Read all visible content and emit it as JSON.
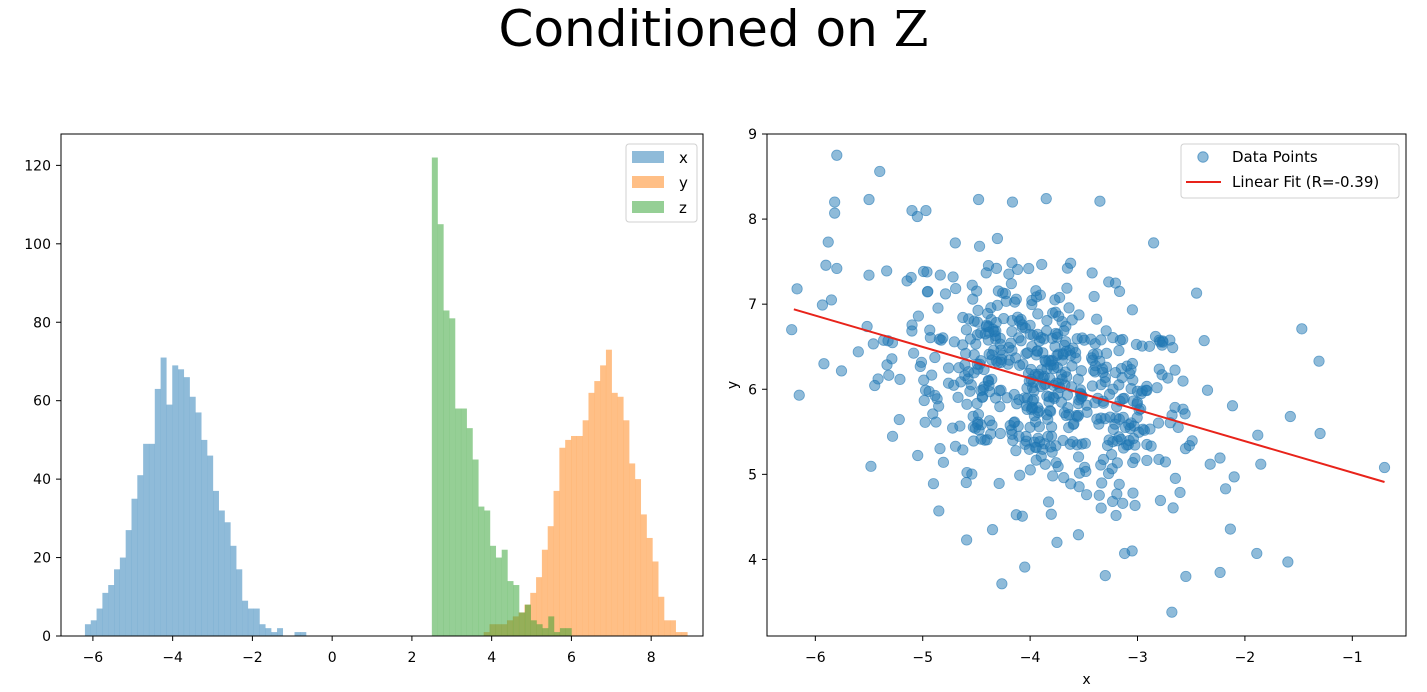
{
  "title": {
    "prefix": "Conditioned on ",
    "var": "Z"
  },
  "colors": {
    "x": "#1f77b4",
    "y": "#ff7f0e",
    "z": "#2ca02c",
    "fit": "#e8231a"
  },
  "chart_data": [
    {
      "type": "histogram",
      "title": "",
      "xlabel": "",
      "ylabel": "",
      "xlim": [
        -6.8,
        9.3
      ],
      "ylim": [
        0,
        128
      ],
      "xticks": [
        -6,
        -4,
        -2,
        0,
        2,
        4,
        6,
        8
      ],
      "yticks": [
        0,
        20,
        40,
        60,
        80,
        100,
        120
      ],
      "legend_position": "top-right",
      "alpha": 0.5,
      "series": [
        {
          "name": "x",
          "color": "#1f77b4",
          "bin_width": 0.146,
          "bin_start": -6.2,
          "counts": [
            3,
            4,
            7,
            11,
            13,
            17,
            20,
            27,
            35,
            41,
            49,
            49,
            63,
            71,
            59,
            69,
            68,
            66,
            61,
            57,
            50,
            46,
            37,
            32,
            29,
            23,
            17,
            9,
            7,
            7,
            3,
            2,
            1,
            2,
            0,
            0,
            1,
            1
          ]
        },
        {
          "name": "y",
          "color": "#ff7f0e",
          "bin_width": 0.146,
          "bin_start": 3.8,
          "counts": [
            1,
            3,
            3,
            3,
            4,
            5,
            6,
            8,
            11,
            15,
            22,
            28,
            37,
            48,
            50,
            51,
            51,
            55,
            62,
            65,
            69,
            73,
            62,
            61,
            55,
            44,
            40,
            31,
            25,
            19,
            10,
            4,
            4,
            1,
            1
          ]
        },
        {
          "name": "z",
          "color": "#2ca02c",
          "bin_width": 0.146,
          "bin_start": 2.5,
          "counts": [
            122,
            105,
            83,
            81,
            58,
            58,
            53,
            45,
            33,
            32,
            23,
            20,
            22,
            14,
            13,
            6,
            8,
            4,
            3,
            2,
            5,
            1,
            2,
            2
          ]
        }
      ]
    },
    {
      "type": "scatter",
      "title": "",
      "xlabel": "x",
      "ylabel": "y",
      "xlim": [
        -6.45,
        -0.5
      ],
      "ylim": [
        3.1,
        9.0
      ],
      "xticks": [
        -6,
        -5,
        -4,
        -3,
        -2,
        -1
      ],
      "yticks": [
        4,
        5,
        6,
        7,
        8,
        9
      ],
      "xtick_labels": [
        "−6",
        "−5",
        "−4",
        "−3",
        "−2",
        "−1"
      ],
      "legend_position": "top-right",
      "fit": {
        "label": "Linear Fit (R=-0.39)",
        "x": [
          -6.2,
          -0.7
        ],
        "y": [
          6.94,
          4.91
        ]
      },
      "points_label": "Data Points",
      "highlighted_points": [
        [
          -6.22,
          6.7
        ],
        [
          -6.15,
          5.93
        ],
        [
          -6.17,
          7.18
        ],
        [
          -5.8,
          8.75
        ],
        [
          -5.82,
          8.2
        ],
        [
          -5.82,
          8.07
        ],
        [
          -5.8,
          7.42
        ],
        [
          -5.85,
          7.05
        ],
        [
          -5.88,
          7.73
        ],
        [
          -5.92,
          6.3
        ],
        [
          -5.6,
          6.44
        ],
        [
          -5.4,
          8.56
        ],
        [
          -5.5,
          8.23
        ],
        [
          -5.1,
          8.1
        ],
        [
          -5.05,
          8.03
        ],
        [
          -4.97,
          8.1
        ],
        [
          -4.48,
          8.23
        ],
        [
          -4.9,
          4.89
        ],
        [
          -4.85,
          4.57
        ],
        [
          -4.35,
          4.35
        ],
        [
          -4.05,
          3.91
        ],
        [
          -3.85,
          8.24
        ],
        [
          -3.35,
          8.21
        ],
        [
          -3.3,
          3.81
        ],
        [
          -2.68,
          3.38
        ],
        [
          -2.55,
          3.8
        ],
        [
          -1.6,
          3.97
        ],
        [
          -1.3,
          5.48
        ],
        [
          -1.31,
          6.33
        ],
        [
          -1.47,
          6.71
        ],
        [
          -0.7,
          5.08
        ],
        [
          -1.88,
          5.46
        ],
        [
          -2.18,
          4.83
        ],
        [
          -2.1,
          4.97
        ],
        [
          -2.45,
          7.13
        ],
        [
          -2.85,
          7.72
        ],
        [
          -3.12,
          4.07
        ],
        [
          -3.05,
          4.1
        ],
        [
          -3.75,
          4.2
        ],
        [
          -3.55,
          4.29
        ]
      ]
    }
  ]
}
